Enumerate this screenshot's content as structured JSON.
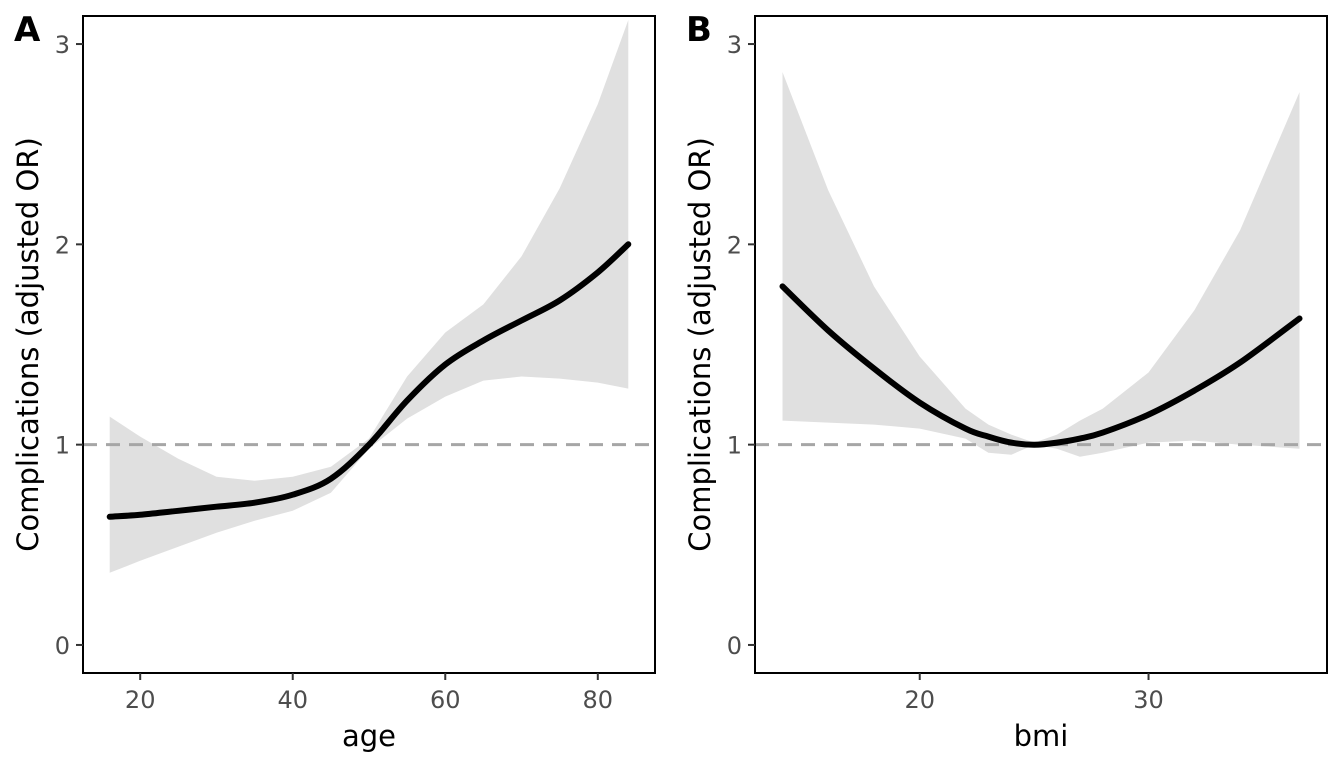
{
  "chart_data": [
    {
      "type": "line",
      "panel_tag": "A",
      "xlabel": "age",
      "ylabel": "Complications (adjusted OR)",
      "xlim": [
        12.5,
        87.5
      ],
      "ylim": [
        -0.14,
        3.14
      ],
      "x_ticks": [
        20,
        40,
        60,
        80
      ],
      "y_ticks": [
        0,
        1,
        2,
        3
      ],
      "reference_line": 1,
      "grid": false,
      "series": [
        {
          "x": [
            16,
            20,
            25,
            30,
            35,
            40,
            45,
            50,
            55,
            60,
            65,
            70,
            75,
            80,
            84
          ],
          "y": [
            0.64,
            0.65,
            0.67,
            0.69,
            0.71,
            0.75,
            0.83,
            1.0,
            1.22,
            1.4,
            1.52,
            1.62,
            1.72,
            1.86,
            2.0
          ],
          "lower": [
            0.36,
            0.42,
            0.49,
            0.56,
            0.62,
            0.67,
            0.76,
            0.98,
            1.13,
            1.24,
            1.32,
            1.34,
            1.33,
            1.31,
            1.28
          ],
          "upper": [
            1.14,
            1.04,
            0.93,
            0.84,
            0.82,
            0.84,
            0.89,
            1.03,
            1.34,
            1.56,
            1.7,
            1.94,
            2.28,
            2.7,
            3.12
          ]
        }
      ]
    },
    {
      "type": "line",
      "panel_tag": "B",
      "xlabel": "bmi",
      "ylabel": "Complications (adjusted OR)",
      "xlim": [
        12.8,
        37.8
      ],
      "ylim": [
        -0.14,
        3.14
      ],
      "x_ticks": [
        20,
        30
      ],
      "y_ticks": [
        0,
        1,
        2,
        3
      ],
      "reference_line": 1,
      "grid": false,
      "series": [
        {
          "x": [
            14,
            16,
            18,
            20,
            22,
            23,
            24,
            25,
            26,
            27,
            28,
            30,
            32,
            34,
            36.6
          ],
          "y": [
            1.79,
            1.57,
            1.38,
            1.21,
            1.08,
            1.04,
            1.01,
            1.0,
            1.01,
            1.03,
            1.06,
            1.15,
            1.27,
            1.41,
            1.63
          ],
          "lower": [
            1.12,
            1.11,
            1.1,
            1.08,
            1.03,
            0.96,
            0.95,
            1.0,
            0.98,
            0.94,
            0.96,
            1.01,
            1.02,
            1.0,
            0.98
          ],
          "upper": [
            2.86,
            2.27,
            1.79,
            1.44,
            1.18,
            1.1,
            1.05,
            1.01,
            1.05,
            1.12,
            1.18,
            1.36,
            1.67,
            2.07,
            2.76
          ]
        }
      ]
    }
  ]
}
